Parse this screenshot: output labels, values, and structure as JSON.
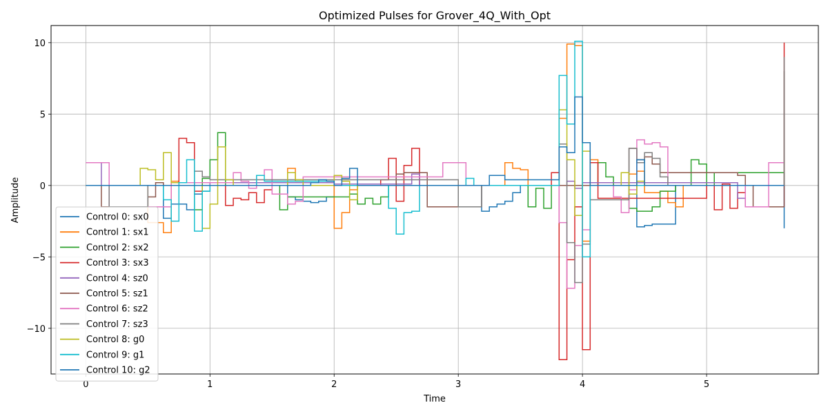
{
  "chart_data": {
    "type": "line",
    "step": true,
    "title": "Optimized Pulses for Grover_4Q_With_Opt",
    "xlabel": "Time",
    "ylabel": "Amplitude",
    "xlim": [
      -0.28,
      5.9
    ],
    "ylim": [
      -13.2,
      11.2
    ],
    "xticks": [
      0,
      1,
      2,
      3,
      4,
      5
    ],
    "yticks": [
      -10,
      -5,
      0,
      5,
      10
    ],
    "ytick_labels": [
      "−10",
      "−5",
      "0",
      "5",
      "10"
    ],
    "grid": true,
    "legend_position": "lower-left",
    "dt": 0.0625,
    "t_end": 5.625,
    "series": [
      {
        "name": "Control 0: sx0",
        "color": "#1f77b4",
        "x": [
          0,
          0.625,
          0.688,
          0.75,
          0.812,
          0.875,
          0.938,
          1.0,
          1.25,
          1.5,
          1.625,
          1.688,
          1.75,
          1.812,
          1.875,
          1.938,
          2.0,
          3.125,
          3.188,
          3.25,
          3.312,
          3.375,
          3.438,
          3.5,
          4.375,
          4.438,
          4.5,
          4.562,
          4.625,
          4.75,
          5.625
        ],
        "y": [
          0,
          -2.3,
          -1.3,
          -1.3,
          -1.7,
          -0.6,
          -0.4,
          0,
          0,
          0,
          -0.8,
          -1.0,
          -1.1,
          -1.2,
          -1.1,
          -0.8,
          0,
          0,
          -1.8,
          -1.5,
          -1.3,
          -1.1,
          -0.5,
          0,
          0,
          -2.9,
          -2.8,
          -2.7,
          -2.7,
          0,
          -3.0
        ]
      },
      {
        "name": "Control 1: sx1",
        "color": "#ff7f0e",
        "x": [
          0,
          0.5,
          0.562,
          0.625,
          0.688,
          0.75,
          1.5,
          1.625,
          1.688,
          1.75,
          2.0,
          2.062,
          2.125,
          2.188,
          2.25,
          3.375,
          3.438,
          3.5,
          3.562,
          3.812,
          3.875,
          3.938,
          4.0,
          4.062,
          4.125,
          4.375,
          4.438,
          4.5,
          4.562,
          4.625,
          4.688,
          4.75,
          4.812,
          5.625
        ],
        "y": [
          0,
          -2.6,
          -2.6,
          -3.3,
          0.3,
          0,
          0,
          1.2,
          0.3,
          0,
          -3.0,
          -1.9,
          -0.3,
          0,
          0,
          1.6,
          1.2,
          1.1,
          0,
          4.7,
          9.9,
          9.8,
          -3.9,
          1.8,
          0,
          0.8,
          1.0,
          -0.5,
          -0.5,
          -0.4,
          -1.2,
          -1.5,
          0,
          0
        ]
      },
      {
        "name": "Control 2: sx2",
        "color": "#2ca02c",
        "x": [
          0,
          0.875,
          0.938,
          1.0,
          1.062,
          1.125,
          1.5,
          1.562,
          1.625,
          2.125,
          2.188,
          2.25,
          2.312,
          2.375,
          2.438,
          3.5,
          3.562,
          3.625,
          3.688,
          3.75,
          4.125,
          4.188,
          4.25,
          4.375,
          4.438,
          4.5,
          4.562,
          4.625,
          4.75,
          4.875,
          4.938,
          5.0,
          5.062,
          5.625
        ],
        "y": [
          0,
          -1.7,
          0.5,
          1.8,
          3.7,
          0,
          0,
          -1.7,
          -0.8,
          -0.6,
          -1.3,
          -0.9,
          -1.3,
          -0.8,
          0,
          0,
          -1.5,
          -0.2,
          -1.6,
          0,
          1.6,
          0.6,
          0,
          -1.6,
          -1.8,
          -1.8,
          -1.5,
          -0.4,
          0,
          1.8,
          1.5,
          0,
          0.9,
          0
        ]
      },
      {
        "name": "Control 3: sx3",
        "color": "#d62728",
        "x": [
          0,
          0.75,
          0.812,
          0.875,
          0.938,
          1.125,
          1.188,
          1.25,
          1.312,
          1.375,
          1.438,
          1.5,
          2.375,
          2.438,
          2.5,
          2.562,
          2.625,
          2.688,
          3.75,
          3.812,
          3.875,
          3.938,
          4.0,
          4.062,
          4.125,
          5.0,
          5.062,
          5.125,
          5.188,
          5.25,
          5.312,
          5.625
        ],
        "y": [
          0,
          3.3,
          3.0,
          -0.4,
          0,
          -1.4,
          -0.9,
          -1.0,
          -0.5,
          -1.2,
          -0.3,
          0,
          0.4,
          1.9,
          -1.1,
          1.4,
          2.6,
          0,
          0.9,
          -12.2,
          -5.2,
          -1.5,
          -11.5,
          1.6,
          -0.9,
          0,
          -1.7,
          0.1,
          -1.6,
          -0.5,
          0,
          10.0
        ]
      },
      {
        "name": "Control 4: sz0",
        "color": "#9467bd",
        "x": [
          0,
          0.125,
          0.188,
          1.0,
          2.0,
          2.625,
          2.688,
          3.0,
          3.875,
          3.938,
          4.0,
          5.25,
          5.312,
          5.562,
          5.625
        ],
        "y": [
          1.6,
          0,
          0,
          0.2,
          0.1,
          0.8,
          0,
          0,
          0.3,
          -0.2,
          0.2,
          -0.9,
          -1.5,
          -1.5,
          0
        ]
      },
      {
        "name": "Control 5: sz1",
        "color": "#8c564b",
        "x": [
          0,
          0.125,
          0.188,
          0.25,
          0.312,
          0.375,
          0.438,
          0.5,
          0.562,
          0.625,
          2.5,
          2.562,
          2.75,
          2.875,
          2.938,
          3.0,
          3.125,
          3.188,
          4.375,
          4.438,
          4.5,
          4.562,
          4.625,
          5.25,
          5.312,
          5.375,
          5.5,
          5.625
        ],
        "y": [
          0,
          -1.5,
          -1.5,
          -1.5,
          -1.5,
          -1.5,
          -1.5,
          -0.8,
          0.2,
          0,
          0.8,
          0.9,
          -1.5,
          -1.5,
          -1.5,
          -1.5,
          -1.5,
          0,
          2.6,
          1.8,
          2.0,
          1.5,
          0.9,
          0.7,
          0,
          -1.5,
          -1.5,
          8.0
        ]
      },
      {
        "name": "Control 6: sz2",
        "color": "#e377c2",
        "x": [
          0,
          0.188,
          0.25,
          0.312,
          0.375,
          0.438,
          0.5,
          0.562,
          0.625,
          0.688,
          1.188,
          1.25,
          1.312,
          1.375,
          1.438,
          1.5,
          1.625,
          1.688,
          1.75,
          2.875,
          2.938,
          3.0,
          3.062,
          3.75,
          3.812,
          3.875,
          3.938,
          4.0,
          4.062,
          4.25,
          4.312,
          4.375,
          4.438,
          4.5,
          4.562,
          4.625,
          4.688,
          5.25,
          5.312,
          5.5,
          5.562,
          5.625
        ],
        "y": [
          1.6,
          -1.5,
          -1.5,
          -1.5,
          -1.5,
          -1.5,
          -1.5,
          -1.5,
          -1.5,
          0.2,
          0.9,
          0.3,
          -0.2,
          0.7,
          1.1,
          -0.6,
          -1.3,
          -1.1,
          0.6,
          1.6,
          1.6,
          1.6,
          0,
          0,
          -2.6,
          -7.2,
          -4.2,
          -3.1,
          0,
          -0.8,
          -1.9,
          -0.3,
          3.2,
          2.9,
          3.0,
          2.7,
          0,
          0,
          -1.5,
          1.6,
          1.6,
          1.6
        ]
      },
      {
        "name": "Control 7: sz3",
        "color": "#7f7f7f",
        "x": [
          0,
          0.188,
          0.25,
          0.312,
          0.375,
          0.438,
          0.5,
          0.875,
          0.938,
          1.0,
          3.0,
          3.062,
          3.125,
          3.188,
          3.812,
          3.875,
          3.938,
          4.0,
          4.062,
          4.375,
          4.438,
          4.5,
          4.562,
          4.625,
          4.688,
          5.562,
          5.625
        ],
        "y": [
          0,
          -1.5,
          -1.5,
          -1.5,
          -1.5,
          -1.5,
          0,
          1.0,
          0.6,
          0.4,
          -1.5,
          -1.5,
          -1.5,
          0,
          2.9,
          -4.0,
          -6.8,
          -4.1,
          -1.0,
          2.6,
          1.6,
          2.3,
          1.9,
          0.6,
          0,
          0,
          9.0
        ]
      },
      {
        "name": "Control 8: g0",
        "color": "#bcbd22",
        "x": [
          0,
          0.438,
          0.5,
          0.562,
          0.625,
          0.688,
          0.75,
          0.938,
          1.0,
          1.062,
          1.125,
          1.188,
          1.625,
          1.688,
          1.75,
          2.0,
          2.062,
          2.125,
          2.188,
          3.75,
          3.812,
          3.875,
          3.938,
          4.0,
          4.062,
          4.312,
          4.375,
          4.438,
          4.5,
          5.625
        ],
        "y": [
          0,
          1.2,
          1.1,
          0.4,
          2.3,
          0.2,
          0,
          -3.0,
          -1.3,
          2.7,
          0.4,
          0,
          0.9,
          0.4,
          0,
          0.7,
          0.3,
          -1.0,
          0,
          0,
          5.3,
          1.8,
          -2.1,
          2.4,
          0,
          0.9,
          -0.6,
          0.3,
          0,
          0
        ]
      },
      {
        "name": "Control 9: g1",
        "color": "#17becf",
        "x": [
          0,
          0.625,
          0.688,
          0.75,
          0.812,
          0.875,
          0.938,
          1.0,
          1.25,
          1.375,
          1.438,
          2.0,
          2.375,
          2.438,
          2.5,
          2.562,
          2.625,
          2.688,
          3.0,
          3.062,
          3.125,
          3.188,
          3.75,
          3.812,
          3.875,
          3.938,
          4.0,
          4.062,
          5.625
        ],
        "y": [
          0,
          -1.0,
          -2.5,
          0.2,
          1.8,
          -3.2,
          -0.4,
          0,
          0,
          0.7,
          0.3,
          0,
          0,
          -1.6,
          -3.4,
          -1.9,
          -1.8,
          0,
          0,
          0.5,
          0,
          0,
          0,
          7.7,
          4.3,
          10.1,
          -5.0,
          0,
          0
        ]
      },
      {
        "name": "Control 10: g2",
        "color": "#1f77b4",
        "x": [
          0,
          1.75,
          1.812,
          1.875,
          1.938,
          2.0,
          2.062,
          2.125,
          2.188,
          3.0,
          3.25,
          3.312,
          3.375,
          3.812,
          3.875,
          3.938,
          4.0,
          4.062,
          4.375,
          4.438,
          4.5,
          5.625
        ],
        "y": [
          0,
          0,
          0.2,
          0.4,
          0.3,
          0,
          0.5,
          1.2,
          0,
          0,
          0.7,
          0.7,
          0.4,
          2.7,
          2.3,
          6.2,
          3.0,
          0,
          0,
          1.8,
          0,
          0
        ]
      }
    ]
  }
}
